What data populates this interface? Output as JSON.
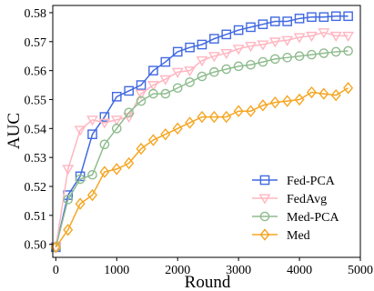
{
  "chart_data": {
    "type": "line",
    "title": "",
    "xlabel": "Round",
    "ylabel": "AUC",
    "xlim": [
      -50,
      5000
    ],
    "ylim": [
      0.4955,
      0.5825
    ],
    "xticks": [
      0,
      1000,
      2000,
      3000,
      4000,
      5000
    ],
    "yticks": [
      0.5,
      0.51,
      0.52,
      0.53,
      0.54,
      0.55,
      0.56,
      0.57,
      0.58
    ],
    "xtick_labels": [
      "0",
      "1000",
      "2000",
      "3000",
      "4000",
      "5000"
    ],
    "ytick_labels": [
      "0.50",
      "0.51",
      "0.52",
      "0.53",
      "0.54",
      "0.55",
      "0.56",
      "0.57",
      "0.58"
    ],
    "grid": false,
    "legend_position": "lower-right",
    "x": [
      0,
      200,
      400,
      600,
      800,
      1000,
      1200,
      1400,
      1600,
      1800,
      2000,
      2200,
      2400,
      2600,
      2800,
      3000,
      3200,
      3400,
      3600,
      3800,
      4000,
      4200,
      4400,
      4600,
      4800
    ],
    "series": [
      {
        "name": "Fed-PCA",
        "color": "#4169E1",
        "marker": "square",
        "values": [
          0.499,
          0.517,
          0.5235,
          0.538,
          0.544,
          0.551,
          0.553,
          0.555,
          0.56,
          0.563,
          0.5665,
          0.568,
          0.569,
          0.571,
          0.5725,
          0.574,
          0.575,
          0.576,
          0.577,
          0.577,
          0.578,
          0.5785,
          0.5785,
          0.5788,
          0.5788
        ]
      },
      {
        "name": "FedAvg",
        "color": "#FFB6C1",
        "marker": "triangle-down",
        "values": [
          0.499,
          0.526,
          0.5395,
          0.543,
          0.542,
          0.543,
          0.544,
          0.552,
          0.555,
          0.557,
          0.5595,
          0.56,
          0.5635,
          0.565,
          0.566,
          0.5675,
          0.5685,
          0.569,
          0.57,
          0.5705,
          0.5715,
          0.572,
          0.5732,
          0.572,
          0.572
        ]
      },
      {
        "name": "Med-PCA",
        "color": "#8FBC8F",
        "marker": "circle",
        "values": [
          0.499,
          0.5155,
          0.5225,
          0.524,
          0.5345,
          0.54,
          0.5455,
          0.5495,
          0.552,
          0.552,
          0.554,
          0.556,
          0.558,
          0.5595,
          0.5605,
          0.5615,
          0.562,
          0.563,
          0.564,
          0.5645,
          0.565,
          0.5655,
          0.566,
          0.5665,
          0.5668
        ]
      },
      {
        "name": "Med",
        "color": "#F5A623",
        "marker": "diamond",
        "values": [
          0.499,
          0.505,
          0.514,
          0.517,
          0.525,
          0.526,
          0.528,
          0.533,
          0.536,
          0.538,
          0.54,
          0.542,
          0.544,
          0.544,
          0.544,
          0.546,
          0.546,
          0.548,
          0.549,
          0.5495,
          0.55,
          0.5525,
          0.552,
          0.5515,
          0.554
        ]
      }
    ]
  }
}
